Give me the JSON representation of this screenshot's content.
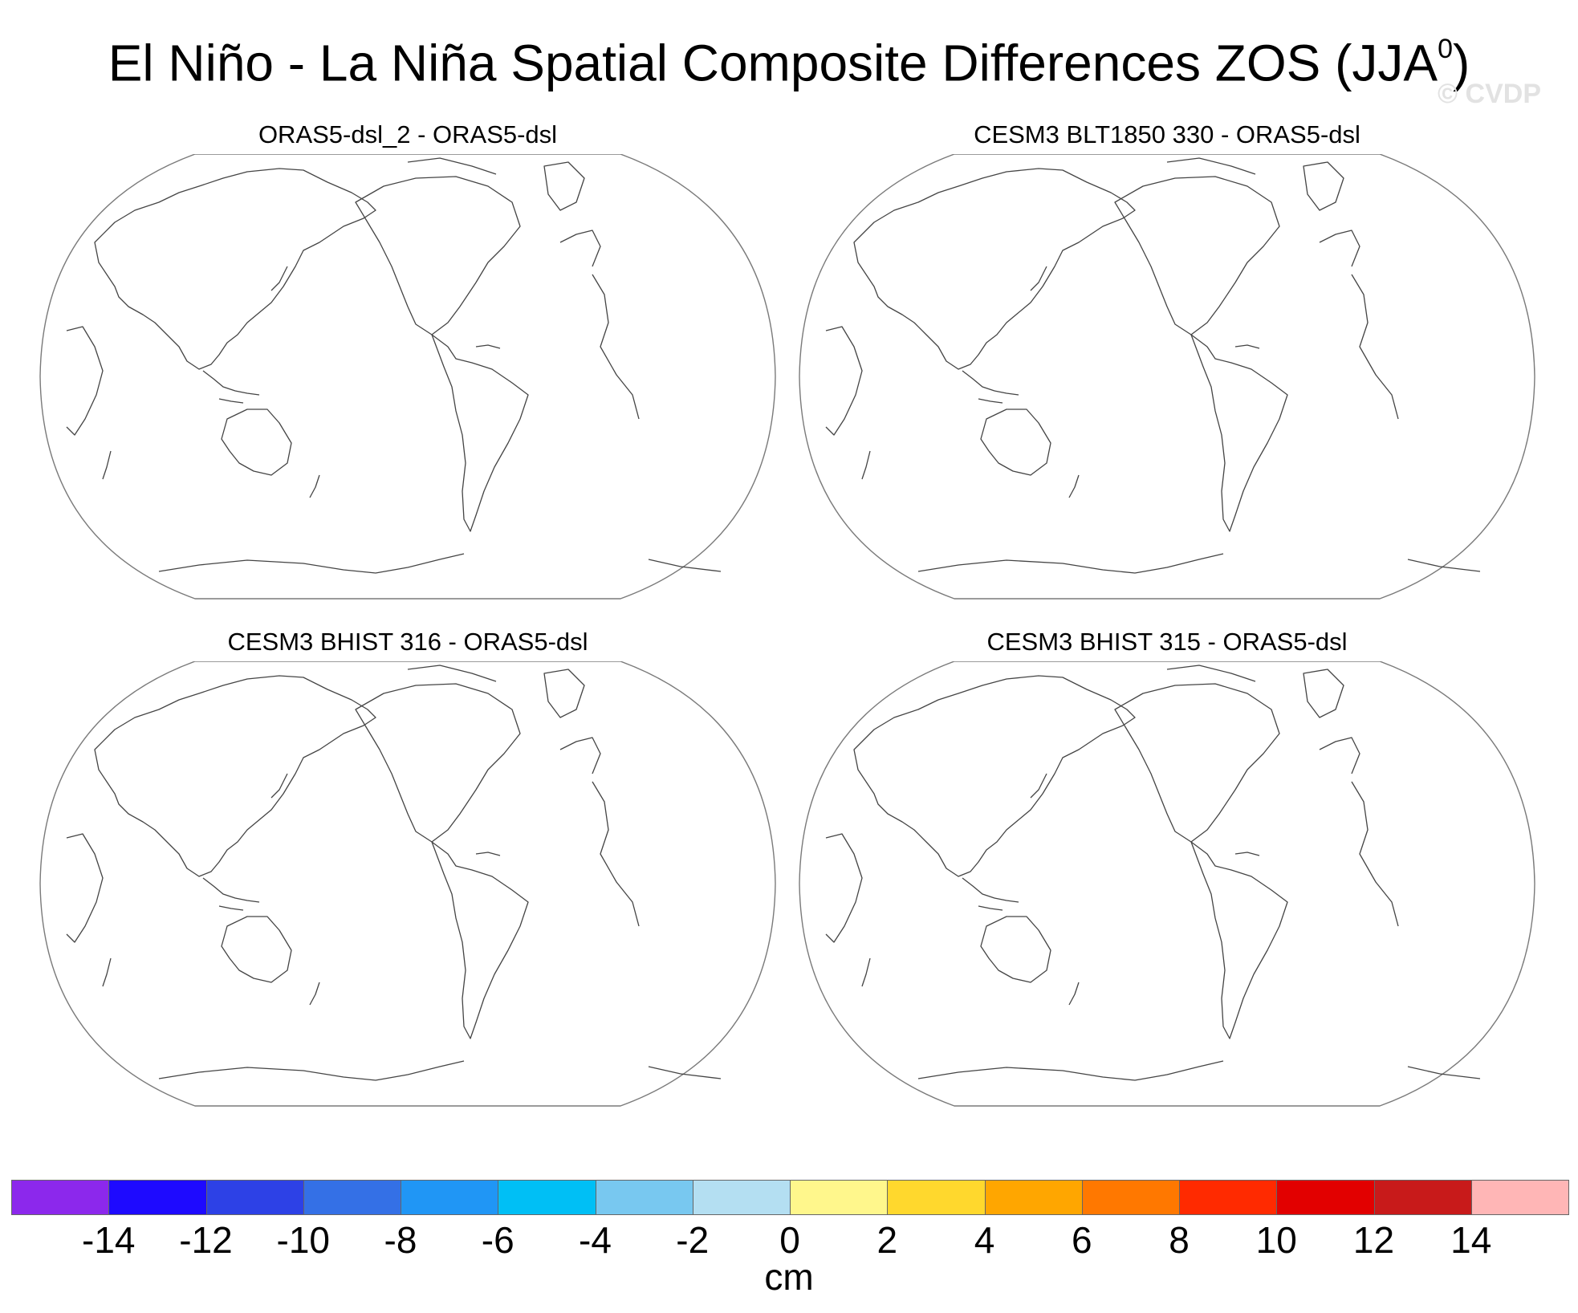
{
  "figure": {
    "title": "El Niño - La Niña Spatial Composite Differences ZOS (JJA",
    "title_superscript": "0",
    "title_close": ")",
    "watermark": "© CVDP"
  },
  "panels": [
    {
      "title": "ORAS5-dsl_2 - ORAS5-dsl"
    },
    {
      "title": "CESM3 BLT1850 330 - ORAS5-dsl"
    },
    {
      "title": "CESM3 BHIST 316 - ORAS5-dsl"
    },
    {
      "title": "CESM3 BHIST 315 - ORAS5-dsl"
    }
  ],
  "colorbar": {
    "units": "cm",
    "colors": [
      "#8c28ec",
      "#1e0aff",
      "#2d41e6",
      "#3470e6",
      "#2096f5",
      "#00bff5",
      "#78c8f0",
      "#b4dff2",
      "#fff78c",
      "#ffd82d",
      "#ffa600",
      "#ff7800",
      "#ff2a00",
      "#e20000",
      "#c81a1a",
      "#ffb6b6"
    ],
    "tick_labels": [
      "-14",
      "-12",
      "-10",
      "-8",
      "-6",
      "-4",
      "-2",
      "0",
      "2",
      "4",
      "6",
      "8",
      "10",
      "12",
      "14"
    ]
  },
  "chart_data": {
    "type": "heatmap",
    "title": "El Niño - La Niña Spatial Composite Differences ZOS (JJA0)",
    "units": "cm",
    "levels": [
      -14,
      -12,
      -10,
      -8,
      -6,
      -4,
      -2,
      0,
      2,
      4,
      6,
      8,
      10,
      12,
      14
    ],
    "panels": [
      "ORAS5-dsl_2 - ORAS5-dsl",
      "CESM3 BLT1850 330 - ORAS5-dsl",
      "CESM3 BHIST 316 - ORAS5-dsl",
      "CESM3 BHIST 315 - ORAS5-dsl"
    ],
    "projection": "Robinson, Pacific-centered",
    "fields": "blank (no shading visible)"
  }
}
